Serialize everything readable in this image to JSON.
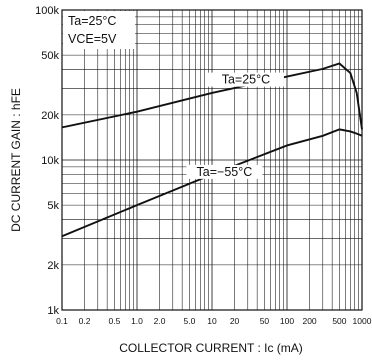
{
  "chart_data": {
    "type": "line",
    "title": "",
    "xlabel": "COLLECTOR CURRENT : Ic (mA)",
    "ylabel": "DC CURRENT GAIN : hFE",
    "x_scale": "log",
    "y_scale": "log",
    "xlim": [
      0.1,
      1000
    ],
    "ylim": [
      1000,
      100000
    ],
    "grid": true,
    "x_ticks": [
      0.1,
      0.2,
      0.5,
      1,
      2,
      5,
      10,
      20,
      50,
      100,
      200,
      500,
      1000
    ],
    "x_tick_labels": [
      "0.1",
      "0.2",
      "0.5",
      "1.0",
      "2.0",
      "5.0",
      "10",
      "20",
      "50",
      "100",
      "200",
      "500",
      "1000"
    ],
    "y_ticks": [
      1000,
      2000,
      5000,
      10000,
      20000,
      50000,
      100000
    ],
    "y_tick_labels": [
      "1k",
      "2k",
      "5k",
      "10k",
      "20k",
      "50k",
      "100k"
    ],
    "conditions": {
      "line1": "Ta=25°C",
      "line2": "VCE=5V"
    },
    "series": [
      {
        "name": "Ta=25°C",
        "x": [
          0.1,
          1,
          10,
          100,
          300,
          500,
          700,
          850,
          1000
        ],
        "y": [
          16500,
          21000,
          28000,
          36000,
          40500,
          44000,
          38000,
          28000,
          16000
        ]
      },
      {
        "name": "Ta=−55°C",
        "x": [
          0.1,
          1,
          10,
          100,
          300,
          500,
          700,
          850,
          1000
        ],
        "y": [
          3100,
          5000,
          8000,
          12500,
          14500,
          16000,
          15500,
          15000,
          14500
        ]
      }
    ]
  }
}
